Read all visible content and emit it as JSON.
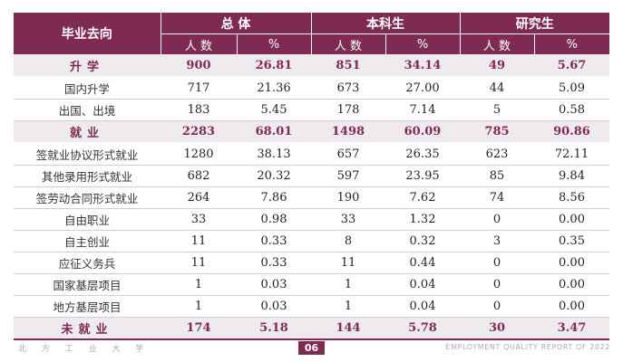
{
  "table": {
    "header": {
      "direction": "毕业去向",
      "groups": [
        "总 体",
        "本科生",
        "研究生"
      ],
      "sub": [
        "人 数",
        "%",
        "人 数",
        "%",
        "人 数",
        "%"
      ]
    },
    "rows": [
      {
        "type": "cat",
        "label": "升学",
        "vals": [
          "900",
          "26.81",
          "851",
          "34.14",
          "49",
          "5.67"
        ]
      },
      {
        "type": "detail",
        "label": "国内升学",
        "vals": [
          "717",
          "21.36",
          "673",
          "27.00",
          "44",
          "5.09"
        ]
      },
      {
        "type": "detail",
        "label": "出国、出境",
        "vals": [
          "183",
          "5.45",
          "178",
          "7.14",
          "5",
          "0.58"
        ]
      },
      {
        "type": "cat",
        "label": "就业",
        "vals": [
          "2283",
          "68.01",
          "1498",
          "60.09",
          "785",
          "90.86"
        ]
      },
      {
        "type": "detail",
        "label": "签就业协议形式就业",
        "vals": [
          "1280",
          "38.13",
          "657",
          "26.35",
          "623",
          "72.11"
        ]
      },
      {
        "type": "detail",
        "label": "其他录用形式就业",
        "vals": [
          "682",
          "20.32",
          "597",
          "23.95",
          "85",
          "9.84"
        ]
      },
      {
        "type": "detail",
        "label": "签劳动合同形式就业",
        "vals": [
          "264",
          "7.86",
          "190",
          "7.62",
          "74",
          "8.56"
        ]
      },
      {
        "type": "detail",
        "label": "自由职业",
        "vals": [
          "33",
          "0.98",
          "33",
          "1.32",
          "0",
          "0.00"
        ]
      },
      {
        "type": "detail",
        "label": "自主创业",
        "vals": [
          "11",
          "0.33",
          "8",
          "0.32",
          "3",
          "0.35"
        ]
      },
      {
        "type": "detail",
        "label": "应征义务兵",
        "vals": [
          "11",
          "0.33",
          "11",
          "0.44",
          "0",
          "0.00"
        ]
      },
      {
        "type": "detail",
        "label": "国家基层项目",
        "vals": [
          "1",
          "0.03",
          "1",
          "0.04",
          "0",
          "0.00"
        ]
      },
      {
        "type": "detail",
        "label": "地方基层项目",
        "vals": [
          "1",
          "0.03",
          "1",
          "0.04",
          "0",
          "0.00"
        ]
      },
      {
        "type": "cat",
        "label": "未就业",
        "vals": [
          "174",
          "5.18",
          "144",
          "5.78",
          "30",
          "3.47"
        ]
      }
    ]
  },
  "footer": {
    "left": "北 方 工 业 大 学",
    "page": "06",
    "right": "EMPLOYMENT QUALITY REPORT OF 2022"
  },
  "colors": {
    "accent": "#7f2a52",
    "category_bg": "#eeeaee",
    "footer_text": "#b9a3ae"
  }
}
